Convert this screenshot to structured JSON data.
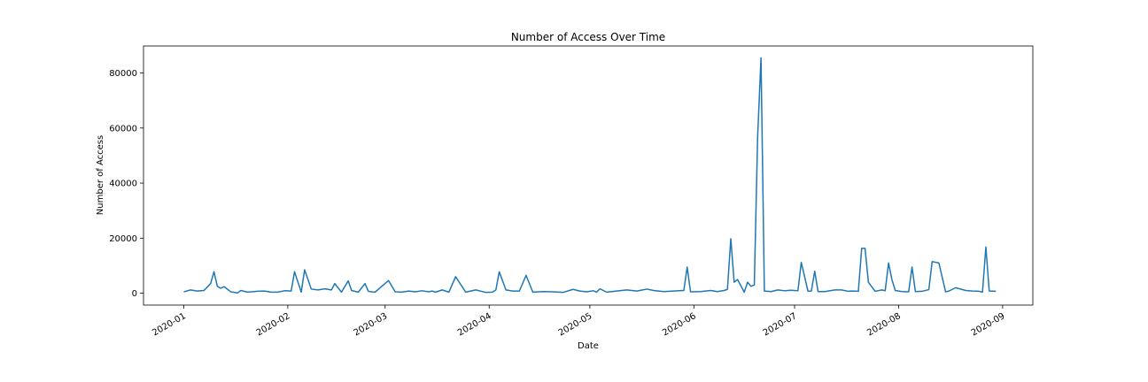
{
  "chart_data": {
    "type": "line",
    "title": "Number of Access Over Time",
    "xlabel": "Date",
    "ylabel": "Number of Access",
    "xlim": [
      "2019-12-20",
      "2020-09-10"
    ],
    "ylim": [
      -4300,
      89800
    ],
    "xticks": [
      {
        "date": "2020-01-01",
        "label": "2020-01"
      },
      {
        "date": "2020-02-01",
        "label": "2020-02"
      },
      {
        "date": "2020-03-01",
        "label": "2020-03"
      },
      {
        "date": "2020-04-01",
        "label": "2020-04"
      },
      {
        "date": "2020-05-01",
        "label": "2020-05"
      },
      {
        "date": "2020-06-01",
        "label": "2020-06"
      },
      {
        "date": "2020-07-01",
        "label": "2020-07"
      },
      {
        "date": "2020-08-01",
        "label": "2020-08"
      },
      {
        "date": "2020-09-01",
        "label": "2020-09"
      }
    ],
    "yticks": [
      0,
      20000,
      40000,
      60000,
      80000
    ],
    "grid": false,
    "legend": "none",
    "line_color": "#1f77b4",
    "series": [
      {
        "x": [
          "2020-01-01",
          "2020-01-03",
          "2020-01-05",
          "2020-01-07",
          "2020-01-09",
          "2020-01-10",
          "2020-01-11",
          "2020-01-12",
          "2020-01-13",
          "2020-01-15",
          "2020-01-17",
          "2020-01-18",
          "2020-01-20",
          "2020-01-23",
          "2020-01-25",
          "2020-01-27",
          "2020-01-29",
          "2020-01-31",
          "2020-02-02",
          "2020-02-03",
          "2020-02-05",
          "2020-02-06",
          "2020-02-08",
          "2020-02-10",
          "2020-02-12",
          "2020-02-14",
          "2020-02-15",
          "2020-02-17",
          "2020-02-19",
          "2020-02-20",
          "2020-02-22",
          "2020-02-24",
          "2020-02-25",
          "2020-02-26",
          "2020-02-27",
          "2020-02-29",
          "2020-03-02",
          "2020-03-04",
          "2020-03-06",
          "2020-03-08",
          "2020-03-10",
          "2020-03-12",
          "2020-03-14",
          "2020-03-15",
          "2020-03-16",
          "2020-03-18",
          "2020-03-20",
          "2020-03-22",
          "2020-03-25",
          "2020-03-28",
          "2020-03-31",
          "2020-04-02",
          "2020-04-03",
          "2020-04-04",
          "2020-04-06",
          "2020-04-08",
          "2020-04-10",
          "2020-04-12",
          "2020-04-14",
          "2020-04-17",
          "2020-04-20",
          "2020-04-23",
          "2020-04-26",
          "2020-04-28",
          "2020-04-30",
          "2020-05-02",
          "2020-05-03",
          "2020-05-04",
          "2020-05-06",
          "2020-05-09",
          "2020-05-12",
          "2020-05-15",
          "2020-05-18",
          "2020-05-20",
          "2020-05-23",
          "2020-05-26",
          "2020-05-29",
          "2020-05-30",
          "2020-05-31",
          "2020-06-03",
          "2020-06-06",
          "2020-06-08",
          "2020-06-10",
          "2020-06-11",
          "2020-06-12",
          "2020-06-13",
          "2020-06-14",
          "2020-06-16",
          "2020-06-17",
          "2020-06-18",
          "2020-06-19",
          "2020-06-20",
          "2020-06-21",
          "2020-06-22",
          "2020-06-24",
          "2020-06-26",
          "2020-06-28",
          "2020-06-30",
          "2020-07-02",
          "2020-07-03",
          "2020-07-05",
          "2020-07-06",
          "2020-07-07",
          "2020-07-08",
          "2020-07-10",
          "2020-07-13",
          "2020-07-15",
          "2020-07-17",
          "2020-07-18",
          "2020-07-20",
          "2020-07-21",
          "2020-07-22",
          "2020-07-23",
          "2020-07-25",
          "2020-07-27",
          "2020-07-28",
          "2020-07-29",
          "2020-07-30",
          "2020-07-31",
          "2020-08-02",
          "2020-08-04",
          "2020-08-05",
          "2020-08-06",
          "2020-08-08",
          "2020-08-10",
          "2020-08-11",
          "2020-08-13",
          "2020-08-15",
          "2020-08-16",
          "2020-08-18",
          "2020-08-21",
          "2020-08-23",
          "2020-08-25",
          "2020-08-26",
          "2020-08-27",
          "2020-08-28",
          "2020-08-30"
        ],
        "y": [
          500,
          1200,
          800,
          1000,
          3500,
          7800,
          2500,
          1800,
          2400,
          500,
          100,
          1000,
          400,
          700,
          800,
          400,
          400,
          900,
          800,
          7800,
          400,
          8500,
          1500,
          1200,
          1600,
          1200,
          3500,
          400,
          4500,
          1000,
          400,
          3500,
          700,
          500,
          400,
          2500,
          4600,
          500,
          400,
          800,
          500,
          900,
          500,
          800,
          400,
          1200,
          400,
          6000,
          400,
          1200,
          300,
          400,
          1200,
          7800,
          1200,
          800,
          800,
          6500,
          400,
          600,
          500,
          300,
          1400,
          800,
          500,
          900,
          400,
          1600,
          400,
          800,
          1200,
          800,
          1500,
          1000,
          600,
          800,
          1000,
          9500,
          500,
          600,
          1000,
          600,
          1000,
          1400,
          19800,
          4000,
          5000,
          400,
          4000,
          2500,
          3000,
          57000,
          85500,
          800,
          600,
          1200,
          900,
          1100,
          900,
          11200,
          700,
          800,
          8000,
          600,
          600,
          1200,
          1200,
          700,
          800,
          700,
          16300,
          16300,
          4000,
          700,
          1200,
          900,
          11000,
          5000,
          1000,
          600,
          500,
          9500,
          600,
          700,
          1300,
          11500,
          11000,
          500,
          800,
          2000,
          1000,
          800,
          700,
          400,
          16800,
          800,
          700
        ]
      }
    ]
  }
}
